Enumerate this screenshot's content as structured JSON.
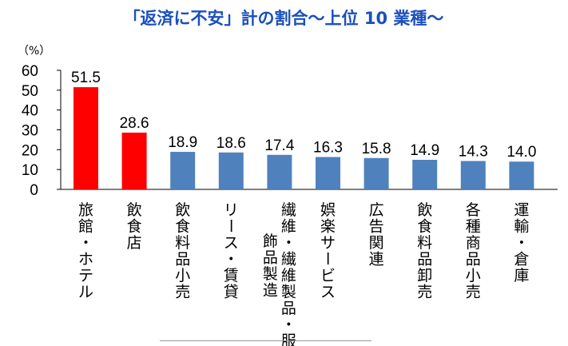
{
  "chart_data": {
    "type": "bar",
    "title": "「返済に不安」計の割合～上位 10 業種～",
    "ylabel": "（%）",
    "ylim": [
      0,
      60
    ],
    "yticks": [
      0,
      10,
      20,
      30,
      40,
      50,
      60
    ],
    "grid": false,
    "categories": [
      "旅館・ホテル",
      "飲食店",
      "飲食料品小売",
      "リース・賃貸",
      "繊維・繊維製品・服飾品製造",
      "娯楽サービス",
      "広告関連",
      "飲食料品卸売",
      "各種商品小売",
      "運輸・倉庫"
    ],
    "category_columns": [
      [
        "旅館・ホテル"
      ],
      [
        "飲食店"
      ],
      [
        "飲食料品小売"
      ],
      [
        "リース・賃貸"
      ],
      [
        "繊維・繊維製品・服",
        "飾品製造"
      ],
      [
        "娯楽サービス"
      ],
      [
        "広告関連"
      ],
      [
        "飲食料品卸売"
      ],
      [
        "各種商品小売"
      ],
      [
        "運輸・倉庫"
      ]
    ],
    "values": [
      51.5,
      28.6,
      18.9,
      18.6,
      17.4,
      16.3,
      15.8,
      14.9,
      14.3,
      14.0
    ],
    "value_labels": [
      "51.5",
      "28.6",
      "18.9",
      "18.6",
      "17.4",
      "16.3",
      "15.8",
      "14.9",
      "14.3",
      "14.0"
    ],
    "bar_colors": [
      "#ff0000",
      "#ff0000",
      "#4f81bd",
      "#4f81bd",
      "#4f81bd",
      "#4f81bd",
      "#4f81bd",
      "#4f81bd",
      "#4f81bd",
      "#4f81bd"
    ],
    "title_color": "#1a4fbf"
  }
}
